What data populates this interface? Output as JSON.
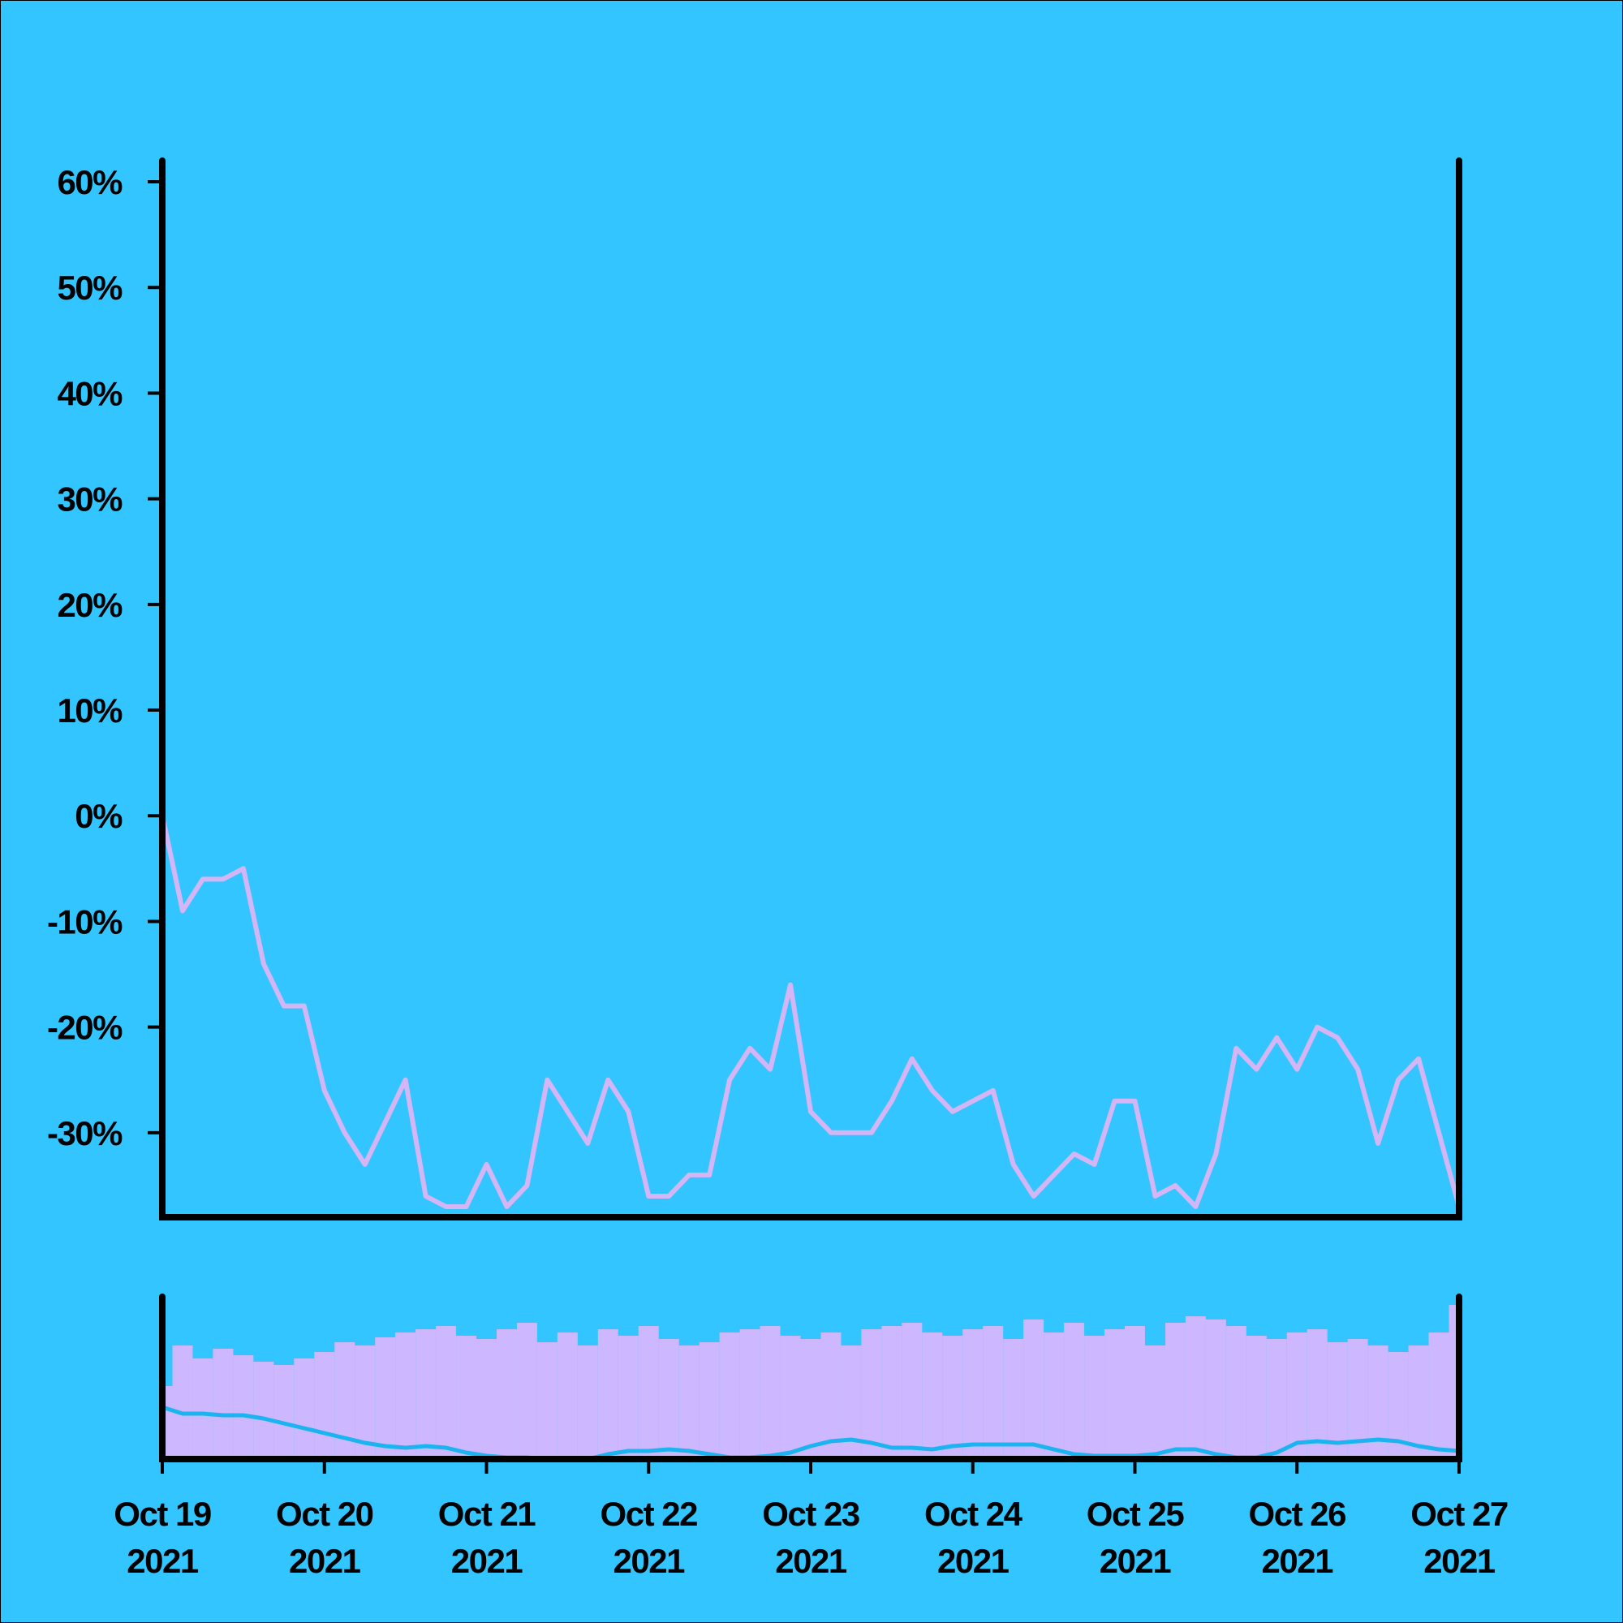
{
  "chart_data": [
    {
      "type": "line",
      "color": "#d4b5f5",
      "x": [
        "2021-10-19T00:00",
        "2021-10-19T03:00",
        "2021-10-19T06:00",
        "2021-10-19T09:00",
        "2021-10-19T12:00",
        "2021-10-19T15:00",
        "2021-10-19T18:00",
        "2021-10-19T21:00",
        "2021-10-20T00:00",
        "2021-10-20T03:00",
        "2021-10-20T06:00",
        "2021-10-20T09:00",
        "2021-10-20T12:00",
        "2021-10-20T15:00",
        "2021-10-20T18:00",
        "2021-10-20T21:00",
        "2021-10-21T00:00",
        "2021-10-21T03:00",
        "2021-10-21T06:00",
        "2021-10-21T09:00",
        "2021-10-21T12:00",
        "2021-10-21T15:00",
        "2021-10-21T18:00",
        "2021-10-21T21:00",
        "2021-10-22T00:00",
        "2021-10-22T03:00",
        "2021-10-22T06:00",
        "2021-10-22T09:00",
        "2021-10-22T12:00",
        "2021-10-22T15:00",
        "2021-10-22T18:00",
        "2021-10-22T21:00",
        "2021-10-23T00:00",
        "2021-10-23T03:00",
        "2021-10-23T06:00",
        "2021-10-23T09:00",
        "2021-10-23T12:00",
        "2021-10-23T15:00",
        "2021-10-23T18:00",
        "2021-10-23T21:00",
        "2021-10-24T00:00",
        "2021-10-24T03:00",
        "2021-10-24T06:00",
        "2021-10-24T09:00",
        "2021-10-24T12:00",
        "2021-10-24T15:00",
        "2021-10-24T18:00",
        "2021-10-24T21:00",
        "2021-10-25T00:00",
        "2021-10-25T03:00",
        "2021-10-25T06:00",
        "2021-10-25T09:00",
        "2021-10-25T12:00",
        "2021-10-25T15:00",
        "2021-10-25T18:00",
        "2021-10-25T21:00",
        "2021-10-26T00:00",
        "2021-10-26T03:00",
        "2021-10-26T06:00",
        "2021-10-26T09:00",
        "2021-10-26T12:00",
        "2021-10-26T15:00",
        "2021-10-26T18:00",
        "2021-10-26T21:00",
        "2021-10-27T00:00"
      ],
      "values": [
        0,
        -9,
        -6,
        -6,
        -5,
        -14,
        -18,
        -18,
        -26,
        -30,
        -33,
        -29,
        -25,
        -36,
        -37,
        -37,
        -33,
        -37,
        -35,
        -25,
        -28,
        -31,
        -25,
        -28,
        -36,
        -36,
        -34,
        -34,
        -25,
        -22,
        -24,
        -16,
        -28,
        -30,
        -30,
        -30,
        -27,
        -23,
        -26,
        -28,
        -27,
        -26,
        -33,
        -36,
        -34,
        -32,
        -33,
        -27,
        -27,
        -36,
        -35,
        -37,
        -32,
        -22,
        -24,
        -21,
        -24,
        -20,
        -21,
        -24,
        -31,
        -25,
        -23,
        -30,
        -37
      ],
      "xlim": [
        "2021-10-19T00:00",
        "2021-10-27T00:00"
      ],
      "ylim": [
        -38,
        62
      ],
      "yticks": [
        {
          "value": -30,
          "label": "-30%"
        },
        {
          "value": -20,
          "label": "-20%"
        },
        {
          "value": -10,
          "label": "-10%"
        },
        {
          "value": 0,
          "label": "0%"
        },
        {
          "value": 10,
          "label": "10%"
        },
        {
          "value": 20,
          "label": "20%"
        },
        {
          "value": 30,
          "label": "30%"
        },
        {
          "value": 40,
          "label": "40%"
        },
        {
          "value": 50,
          "label": "50%"
        },
        {
          "value": 60,
          "label": "60%"
        }
      ]
    },
    {
      "type": "bar",
      "color": "#cdb8ff",
      "x": [
        "2021-10-19T00:00",
        "2021-10-19T03:00",
        "2021-10-19T06:00",
        "2021-10-19T09:00",
        "2021-10-19T12:00",
        "2021-10-19T15:00",
        "2021-10-19T18:00",
        "2021-10-19T21:00",
        "2021-10-20T00:00",
        "2021-10-20T03:00",
        "2021-10-20T06:00",
        "2021-10-20T09:00",
        "2021-10-20T12:00",
        "2021-10-20T15:00",
        "2021-10-20T18:00",
        "2021-10-20T21:00",
        "2021-10-21T00:00",
        "2021-10-21T03:00",
        "2021-10-21T06:00",
        "2021-10-21T09:00",
        "2021-10-21T12:00",
        "2021-10-21T15:00",
        "2021-10-21T18:00",
        "2021-10-21T21:00",
        "2021-10-22T00:00",
        "2021-10-22T03:00",
        "2021-10-22T06:00",
        "2021-10-22T09:00",
        "2021-10-22T12:00",
        "2021-10-22T15:00",
        "2021-10-22T18:00",
        "2021-10-22T21:00",
        "2021-10-23T00:00",
        "2021-10-23T03:00",
        "2021-10-23T06:00",
        "2021-10-23T09:00",
        "2021-10-23T12:00",
        "2021-10-23T15:00",
        "2021-10-23T18:00",
        "2021-10-23T21:00",
        "2021-10-24T00:00",
        "2021-10-24T03:00",
        "2021-10-24T06:00",
        "2021-10-24T09:00",
        "2021-10-24T12:00",
        "2021-10-24T15:00",
        "2021-10-24T18:00",
        "2021-10-24T21:00",
        "2021-10-25T00:00",
        "2021-10-25T03:00",
        "2021-10-25T06:00",
        "2021-10-25T09:00",
        "2021-10-25T12:00",
        "2021-10-25T15:00",
        "2021-10-25T18:00",
        "2021-10-25T21:00",
        "2021-10-26T00:00",
        "2021-10-26T03:00",
        "2021-10-26T06:00",
        "2021-10-26T09:00",
        "2021-10-26T12:00",
        "2021-10-26T15:00",
        "2021-10-26T18:00",
        "2021-10-26T21:00",
        "2021-10-27T00:00"
      ],
      "values": [
        45,
        70,
        62,
        68,
        64,
        60,
        58,
        62,
        66,
        72,
        70,
        75,
        78,
        80,
        82,
        76,
        74,
        80,
        84,
        72,
        78,
        70,
        80,
        76,
        82,
        74,
        70,
        72,
        78,
        80,
        82,
        76,
        74,
        78,
        70,
        80,
        82,
        84,
        78,
        76,
        80,
        82,
        74,
        86,
        78,
        84,
        76,
        80,
        82,
        70,
        84,
        88,
        86,
        82,
        76,
        74,
        78,
        80,
        72,
        74,
        70,
        66,
        70,
        78,
        95
      ],
      "trend": {
        "color": "#1ab4f0",
        "values": [
          32,
          28,
          28,
          27,
          27,
          25,
          22,
          19,
          16,
          13,
          10,
          8,
          7,
          8,
          7,
          4,
          2,
          1,
          1,
          0,
          0,
          0,
          3,
          5,
          5,
          6,
          5,
          3,
          1,
          1,
          2,
          4,
          8,
          11,
          12,
          10,
          7,
          7,
          6,
          8,
          9,
          9,
          9,
          9,
          6,
          3,
          2,
          2,
          2,
          3,
          6,
          6,
          3,
          1,
          1,
          4,
          10,
          11,
          10,
          11,
          12,
          11,
          8,
          6,
          5
        ]
      },
      "xlim": [
        "2021-10-19T00:00",
        "2021-10-27T00:00"
      ],
      "ylim": [
        0,
        100
      ],
      "xticks": [
        {
          "value": "2021-10-19T00:00",
          "label": [
            "Oct 19",
            "2021"
          ]
        },
        {
          "value": "2021-10-20T00:00",
          "label": [
            "Oct 20",
            "2021"
          ]
        },
        {
          "value": "2021-10-21T00:00",
          "label": [
            "Oct 21",
            "2021"
          ]
        },
        {
          "value": "2021-10-22T00:00",
          "label": [
            "Oct 22",
            "2021"
          ]
        },
        {
          "value": "2021-10-23T00:00",
          "label": [
            "Oct 23",
            "2021"
          ]
        },
        {
          "value": "2021-10-24T00:00",
          "label": [
            "Oct 24",
            "2021"
          ]
        },
        {
          "value": "2021-10-25T00:00",
          "label": [
            "Oct 25",
            "2021"
          ]
        },
        {
          "value": "2021-10-26T00:00",
          "label": [
            "Oct 26",
            "2021"
          ]
        },
        {
          "value": "2021-10-27T00:00",
          "label": [
            "Oct 27",
            "2021"
          ]
        }
      ]
    }
  ]
}
